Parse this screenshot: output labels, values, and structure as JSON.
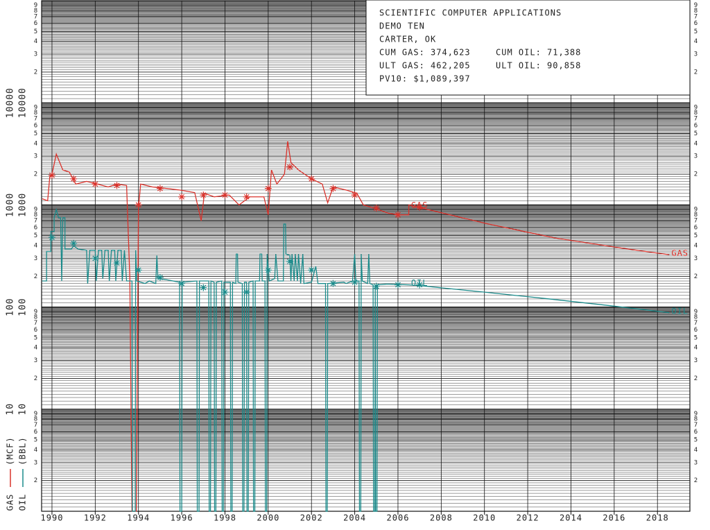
{
  "chart_data": {
    "type": "line",
    "log_scale": "y",
    "grid": true,
    "annotations": [
      [
        "SCIENTIFIC COMPUTER APPLICATIONS"
      ],
      [
        "DEMO TEN"
      ],
      [
        "CARTER, OK"
      ],
      [
        "CUM GAS: 374,623",
        "CUM OIL: 71,388"
      ],
      [
        "ULT GAS: 462,205",
        "ULT OIL: 90,858"
      ],
      [
        "PV10: $1,089,397"
      ]
    ],
    "xlim": [
      1989.52,
      2019.5
    ],
    "xticks": [
      1990,
      1992,
      1994,
      1996,
      1998,
      2000,
      2002,
      2004,
      2006,
      2008,
      2010,
      2012,
      2014,
      2016,
      2018
    ],
    "ylim": [
      1,
      100000
    ],
    "yticks": [
      2,
      3,
      4,
      5,
      6,
      7,
      8,
      9,
      10,
      {
        "value": 20,
        "label": "2"
      },
      {
        "value": 30,
        "label": "3"
      },
      {
        "value": 40,
        "label": "4"
      },
      {
        "value": 50,
        "label": "5"
      },
      {
        "value": 60,
        "label": "6"
      },
      {
        "value": 70,
        "label": "7"
      },
      {
        "value": 80,
        "label": "8"
      },
      {
        "value": 90,
        "label": "9"
      },
      100,
      {
        "value": 200,
        "label": "2"
      },
      {
        "value": 300,
        "label": "3"
      },
      {
        "value": 400,
        "label": "4"
      },
      {
        "value": 500,
        "label": "5"
      },
      {
        "value": 600,
        "label": "6"
      },
      {
        "value": 700,
        "label": "7"
      },
      {
        "value": 800,
        "label": "8"
      },
      {
        "value": 900,
        "label": "9"
      },
      1000,
      {
        "value": 2000,
        "label": "2"
      },
      {
        "value": 3000,
        "label": "3"
      },
      {
        "value": 4000,
        "label": "4"
      },
      {
        "value": 5000,
        "label": "5"
      },
      {
        "value": 6000,
        "label": "6"
      },
      {
        "value": 7000,
        "label": "7"
      },
      {
        "value": 8000,
        "label": "8"
      },
      {
        "value": 9000,
        "label": "9"
      },
      10000,
      {
        "value": 20000,
        "label": "2"
      },
      {
        "value": 30000,
        "label": "3"
      },
      {
        "value": 40000,
        "label": "4"
      },
      {
        "value": 50000,
        "label": "5"
      },
      {
        "value": 60000,
        "label": "6"
      },
      {
        "value": 70000,
        "label": "7"
      },
      {
        "value": 80000,
        "label": "8"
      },
      {
        "value": 90000,
        "label": "9"
      }
    ],
    "series": [
      {
        "name": "GAS",
        "unit": "(MCF)",
        "color": "#d9322b",
        "x": [
          1989.55,
          1989.8,
          1989.9,
          1990.0,
          1990.2,
          1990.5,
          1990.8,
          1991.1,
          1991.6,
          1992.1,
          1992.6,
          1993.0,
          1993.45,
          1993.6,
          1993.7,
          1993.9,
          1994.0,
          1994.1,
          1994.65,
          1995.3,
          1995.9,
          1996.6,
          1996.9,
          1997.05,
          1997.5,
          1998.2,
          1998.65,
          1999.15,
          1999.8,
          2000.0,
          2000.15,
          2000.4,
          2000.75,
          2000.9,
          2001.05,
          2001.4,
          2002.0,
          2002.5,
          2002.75,
          2003.0,
          2003.6,
          2004.1,
          2004.4,
          2004.9,
          2005.55,
          2006.05,
          2006.5,
          2006.5,
          2006.85,
          2010.05,
          2013.25,
          2016.45,
          2018.55
        ],
        "values": [
          1150,
          1100,
          1900,
          2000,
          3150,
          2200,
          2100,
          1600,
          1700,
          1600,
          1500,
          1600,
          1550,
          195,
          1,
          1,
          930,
          1600,
          1500,
          1450,
          1400,
          1320,
          700,
          1300,
          1200,
          1250,
          1000,
          1200,
          1200,
          800,
          2200,
          1600,
          2000,
          4200,
          2600,
          2200,
          1800,
          1600,
          1050,
          1500,
          1400,
          1300,
          1000,
          930,
          830,
          800,
          800,
          1000,
          960,
          660,
          475,
          375,
          325
        ],
        "markers": {
          "x": [
            1990,
            1991,
            1992,
            1993,
            1994,
            1995,
            1996,
            1997,
            1998,
            1999,
            2000,
            2001,
            2002,
            2003,
            2004,
            2005,
            2006,
            2007
          ],
          "values": [
            1950,
            1800,
            1600,
            1550,
            1000,
            1450,
            1200,
            1250,
            1250,
            1200,
            1450,
            2350,
            1800,
            1450,
            1250,
            930,
            800,
            950
          ]
        }
      },
      {
        "name": "OIL",
        "unit": "(BBL)",
        "color": "#1a8a8a",
        "x": [
          1989.55,
          1989.75,
          1989.75,
          1989.95,
          1989.95,
          1990.1,
          1990.1,
          1990.2,
          1990.3,
          1990.4,
          1990.45,
          1990.5,
          1990.6,
          1990.6,
          1990.9,
          1991.0,
          1991.2,
          1991.6,
          1991.65,
          1991.75,
          1992.0,
          1992.05,
          1992.15,
          1992.3,
          1992.35,
          1992.45,
          1992.6,
          1992.65,
          1992.75,
          1992.9,
          1992.95,
          1993.05,
          1993.2,
          1993.25,
          1993.35,
          1993.45,
          1993.7,
          1993.72,
          1993.85,
          1993.87,
          1993.92,
          1994.3,
          1994.5,
          1994.8,
          1994.85,
          1994.9,
          1995.3,
          1995.9,
          1995.92,
          1996.0,
          1996.02,
          1996.7,
          1996.72,
          1996.8,
          1996.82,
          1997.25,
          1997.27,
          1997.33,
          1997.35,
          1997.5,
          1997.52,
          1997.58,
          1997.6,
          1997.85,
          1997.87,
          1997.93,
          1997.95,
          1998.25,
          1998.27,
          1998.33,
          1998.35,
          1998.5,
          1998.52,
          1998.58,
          1998.6,
          1998.8,
          1998.82,
          1998.88,
          1998.9,
          1999.0,
          1999.02,
          1999.08,
          1999.1,
          1999.3,
          1999.32,
          1999.38,
          1999.4,
          1999.6,
          1999.62,
          1999.7,
          1999.72,
          1999.85,
          1999.87,
          1999.93,
          1999.95,
          2000.05,
          2000.3,
          2000.35,
          2000.45,
          2000.7,
          2000.72,
          2000.8,
          2000.82,
          2001.0,
          2001.05,
          2001.1,
          2001.2,
          2001.25,
          2001.35,
          2001.4,
          2001.5,
          2001.6,
          2001.65,
          2002.0,
          2002.2,
          2002.3,
          2002.65,
          2002.67,
          2002.73,
          2002.75,
          2003.5,
          2003.6,
          2003.9,
          2004.0,
          2004.05,
          2004.2,
          2004.22,
          2004.28,
          2004.3,
          2004.35,
          2004.6,
          2004.65,
          2004.7,
          2004.85,
          2004.87,
          2004.93,
          2004.95,
          2004.97,
          2005.03,
          2005.05,
          2005.5,
          2006.5,
          2007.0,
          2010.0,
          2013.0,
          2016.0,
          2018.55
        ],
        "values": [
          180,
          180,
          350,
          350,
          550,
          550,
          750,
          900,
          750,
          750,
          180,
          750,
          750,
          370,
          370,
          400,
          370,
          360,
          170,
          360,
          360,
          180,
          360,
          360,
          190,
          360,
          360,
          180,
          360,
          360,
          180,
          360,
          360,
          180,
          360,
          180,
          180,
          1,
          1,
          360,
          180,
          170,
          180,
          170,
          320,
          190,
          185,
          175,
          1,
          1,
          175,
          180,
          1,
          1,
          180,
          180,
          1,
          1,
          180,
          175,
          1,
          1,
          175,
          180,
          1,
          1,
          175,
          175,
          1,
          1,
          175,
          170,
          330,
          330,
          175,
          170,
          1,
          1,
          175,
          175,
          1,
          1,
          175,
          180,
          1,
          1,
          180,
          180,
          330,
          330,
          180,
          180,
          1,
          1,
          330,
          180,
          190,
          330,
          180,
          180,
          650,
          650,
          330,
          320,
          180,
          330,
          180,
          330,
          180,
          330,
          170,
          330,
          170,
          175,
          250,
          170,
          170,
          1,
          1,
          170,
          175,
          170,
          180,
          330,
          180,
          180,
          1,
          1,
          330,
          180,
          170,
          330,
          170,
          165,
          1,
          1,
          165,
          1,
          1,
          165,
          168,
          165,
          162,
          140,
          120,
          102,
          88
        ],
        "markers": {
          "x": [
            1990,
            1991,
            1992,
            1993,
            1994,
            1995,
            1996,
            1997,
            1998,
            1999,
            2000,
            2001,
            2002,
            2003,
            2004,
            2005,
            2006,
            2007
          ],
          "values": [
            480,
            420,
            300,
            270,
            230,
            195,
            170,
            155,
            140,
            140,
            230,
            280,
            230,
            170,
            175,
            160,
            165,
            165
          ]
        }
      }
    ]
  }
}
